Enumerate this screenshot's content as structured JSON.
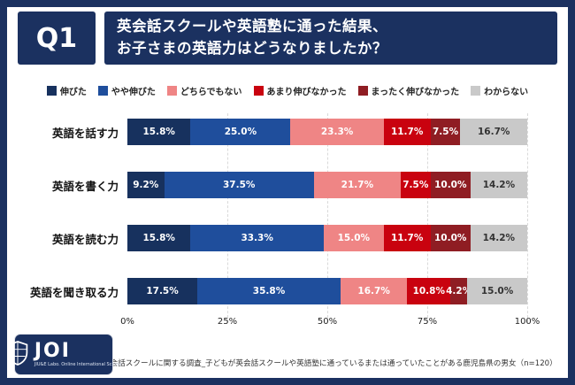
{
  "header": {
    "question_label": "Q1",
    "title_line1": "英会話スクールや英語塾に通った結果、",
    "title_line2": "お子さまの英語力はどうなりましたか？"
  },
  "colors": {
    "frame_navy": "#1b3160",
    "gridline_gray": "#d9d9d9"
  },
  "chart_data": {
    "type": "bar",
    "variant": "horizontal-stacked",
    "unit": "%",
    "title": "英会話スクールや英語塾に通った結果、お子さまの英語力はどうなりましたか？",
    "categories": [
      "英語を話す力",
      "英語を書く力",
      "英語を読む力",
      "英語を聞き取る力"
    ],
    "series": [
      {
        "name": "伸びた",
        "color": "#17315e",
        "label_color": "#ffffff",
        "values": [
          15.8,
          9.2,
          15.8,
          17.5
        ]
      },
      {
        "name": "やや伸びた",
        "color": "#1f4e9c",
        "label_color": "#ffffff",
        "values": [
          25.0,
          37.5,
          33.3,
          35.8
        ]
      },
      {
        "name": "どちらでもない",
        "color": "#ef8585",
        "label_color": "#ffffff",
        "values": [
          23.3,
          21.7,
          15.0,
          16.7
        ]
      },
      {
        "name": "あまり伸びなかった",
        "color": "#c9020f",
        "label_color": "#ffffff",
        "values": [
          11.7,
          7.5,
          11.7,
          10.8
        ]
      },
      {
        "name": "まったく伸びなかった",
        "color": "#8f1d23",
        "label_color": "#ffffff",
        "values": [
          7.5,
          10.0,
          10.0,
          4.2
        ]
      },
      {
        "name": "わからない",
        "color": "#c9c9c9",
        "label_color": "#333333",
        "values": [
          16.7,
          14.2,
          14.2,
          15.0
        ]
      }
    ],
    "x_axis": {
      "range": [
        0,
        100
      ],
      "ticks": [
        {
          "label": "0%",
          "pos": 0
        },
        {
          "label": "25%",
          "pos": 25
        },
        {
          "label": "50%",
          "pos": 50
        },
        {
          "label": "75%",
          "pos": 75
        },
        {
          "label": "100%",
          "pos": 100
        }
      ],
      "gridlines": true
    },
    "legend_position": "top"
  },
  "footer": {
    "logo_title": "JOI",
    "logo_subtitle": "JIU&E Labo. Online International School",
    "caption": "英会話スクールに関する調査_子どもが英会話スクールや英語塾に通っているまたは通っていたことがある鹿児島県の男女（n=120）"
  }
}
